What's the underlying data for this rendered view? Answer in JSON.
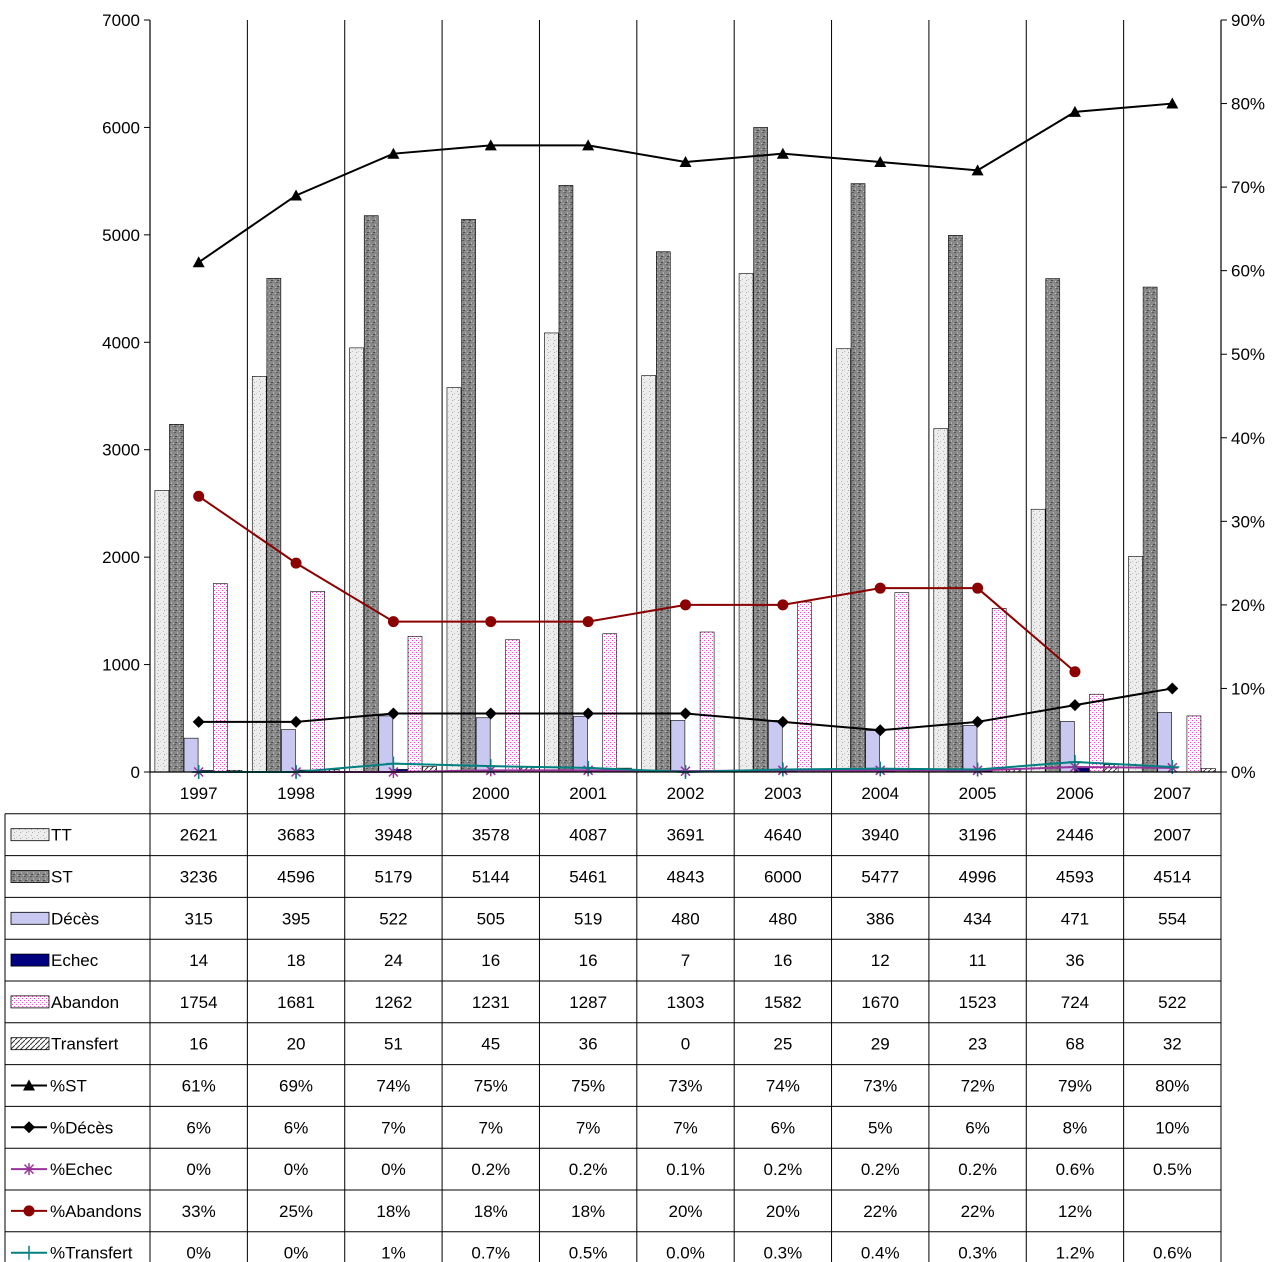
{
  "chart_data": {
    "type": "bar",
    "categories": [
      "1997",
      "1998",
      "1999",
      "2000",
      "2001",
      "2002",
      "2003",
      "2004",
      "2005",
      "2006",
      "2007"
    ],
    "y_left": {
      "ylim": [
        0,
        7000
      ],
      "ticks": [
        0,
        1000,
        2000,
        3000,
        4000,
        5000,
        6000,
        7000
      ]
    },
    "y_right": {
      "ylim": [
        0,
        90
      ],
      "ticks": [
        "0%",
        "10%",
        "20%",
        "30%",
        "40%",
        "50%",
        "60%",
        "70%",
        "80%",
        "90%"
      ]
    },
    "grid": "vertical",
    "legend": "data-table-below",
    "bar_series": [
      {
        "name": "TT",
        "values": [
          2621,
          3683,
          3948,
          3578,
          4087,
          3691,
          4640,
          3940,
          3196,
          2446,
          2007
        ],
        "color": "#e8e8e8",
        "pattern": "speckle-light"
      },
      {
        "name": "ST",
        "values": [
          3236,
          4596,
          5179,
          5144,
          5461,
          4843,
          6000,
          5477,
          4996,
          4593,
          4514
        ],
        "color": "#7a7a7a",
        "pattern": "speckle-dark"
      },
      {
        "name": "Décès",
        "values": [
          315,
          395,
          522,
          505,
          519,
          480,
          480,
          386,
          434,
          471,
          554
        ],
        "color": "#c8c8f0",
        "pattern": "solid"
      },
      {
        "name": "Echec",
        "values": [
          14,
          18,
          24,
          16,
          16,
          7,
          16,
          12,
          11,
          36,
          null
        ],
        "color": "#000080",
        "pattern": "solid"
      },
      {
        "name": "Abandon",
        "values": [
          1754,
          1681,
          1262,
          1231,
          1287,
          1303,
          1582,
          1670,
          1523,
          724,
          522
        ],
        "color": "#ff66cc",
        "pattern": "dots"
      },
      {
        "name": "Transfert",
        "values": [
          16,
          20,
          51,
          45,
          36,
          0,
          25,
          29,
          23,
          68,
          32
        ],
        "color": "#333333",
        "pattern": "hatch"
      }
    ],
    "line_series": [
      {
        "name": "%ST",
        "values": [
          61,
          69,
          74,
          75,
          75,
          73,
          74,
          73,
          72,
          79,
          80
        ],
        "color": "#000000",
        "marker": "triangle"
      },
      {
        "name": "%Décès",
        "values": [
          6,
          6,
          7,
          7,
          7,
          7,
          6,
          5,
          6,
          8,
          10
        ],
        "color": "#000000",
        "marker": "diamond"
      },
      {
        "name": "%Echec",
        "values": [
          0,
          0,
          0,
          0.2,
          0.2,
          0.1,
          0.2,
          0.2,
          0.2,
          0.6,
          0.5
        ],
        "color": "#993399",
        "marker": "star"
      },
      {
        "name": "%Abandons",
        "values": [
          33,
          25,
          18,
          18,
          18,
          20,
          20,
          22,
          22,
          12,
          null
        ],
        "color": "#8b0000",
        "marker": "circle"
      },
      {
        "name": "%Transfert",
        "values": [
          0,
          0,
          1,
          0.7,
          0.5,
          0.0,
          0.3,
          0.4,
          0.3,
          1.2,
          0.6
        ],
        "color": "#008080",
        "marker": "plus"
      }
    ],
    "table_rows": [
      {
        "label": "TT",
        "cells": [
          "2621",
          "3683",
          "3948",
          "3578",
          "4087",
          "3691",
          "4640",
          "3940",
          "3196",
          "2446",
          "2007"
        ]
      },
      {
        "label": "ST",
        "cells": [
          "3236",
          "4596",
          "5179",
          "5144",
          "5461",
          "4843",
          "6000",
          "5477",
          "4996",
          "4593",
          "4514"
        ]
      },
      {
        "label": "Décès",
        "cells": [
          "315",
          "395",
          "522",
          "505",
          "519",
          "480",
          "480",
          "386",
          "434",
          "471",
          "554"
        ]
      },
      {
        "label": "Echec",
        "cells": [
          "14",
          "18",
          "24",
          "16",
          "16",
          "7",
          "16",
          "12",
          "11",
          "36",
          ""
        ]
      },
      {
        "label": "Abandon",
        "cells": [
          "1754",
          "1681",
          "1262",
          "1231",
          "1287",
          "1303",
          "1582",
          "1670",
          "1523",
          "724",
          "522"
        ]
      },
      {
        "label": "Transfert",
        "cells": [
          "16",
          "20",
          "51",
          "45",
          "36",
          "0",
          "25",
          "29",
          "23",
          "68",
          "32"
        ]
      },
      {
        "label": "%ST",
        "cells": [
          "61%",
          "69%",
          "74%",
          "75%",
          "75%",
          "73%",
          "74%",
          "73%",
          "72%",
          "79%",
          "80%"
        ]
      },
      {
        "label": "%Décès",
        "cells": [
          "6%",
          "6%",
          "7%",
          "7%",
          "7%",
          "7%",
          "6%",
          "5%",
          "6%",
          "8%",
          "10%"
        ]
      },
      {
        "label": "%Echec",
        "cells": [
          "0%",
          "0%",
          "0%",
          "0.2%",
          "0.2%",
          "0.1%",
          "0.2%",
          "0.2%",
          "0.2%",
          "0.6%",
          "0.5%"
        ]
      },
      {
        "label": "%Abandons",
        "cells": [
          "33%",
          "25%",
          "18%",
          "18%",
          "18%",
          "20%",
          "20%",
          "22%",
          "22%",
          "12%",
          ""
        ]
      },
      {
        "label": "%Transfert",
        "cells": [
          "0%",
          "0%",
          "1%",
          "0.7%",
          "0.5%",
          "0.0%",
          "0.3%",
          "0.4%",
          "0.3%",
          "1.2%",
          "0.6%"
        ]
      }
    ]
  }
}
